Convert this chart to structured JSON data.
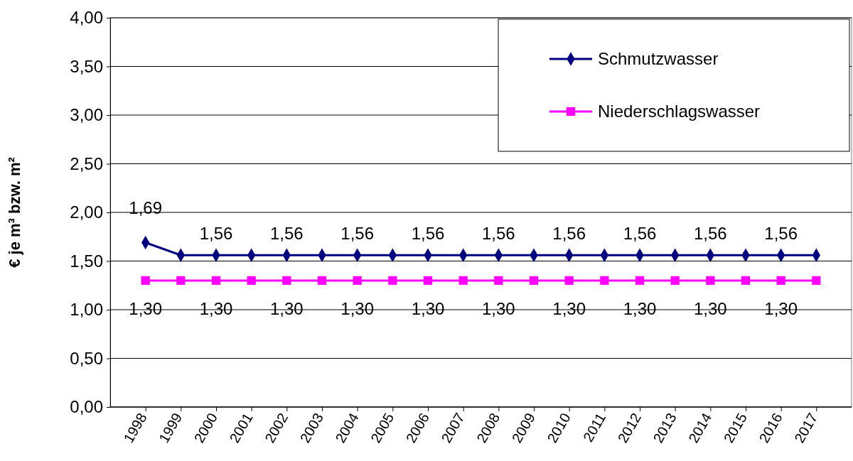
{
  "chart_data": {
    "type": "line",
    "ylabel": "€ je m³ bzw. m²",
    "categories": [
      "1998",
      "1999",
      "2000",
      "2001",
      "2002",
      "2003",
      "2004",
      "2005",
      "2006",
      "2007",
      "2008",
      "2009",
      "2010",
      "2011",
      "2012",
      "2013",
      "2014",
      "2015",
      "2016",
      "2017"
    ],
    "series": [
      {
        "name": "Schmutzwasser",
        "color": "#000080",
        "marker": "diamond",
        "values": [
          1.69,
          1.56,
          1.56,
          1.56,
          1.56,
          1.56,
          1.56,
          1.56,
          1.56,
          1.56,
          1.56,
          1.56,
          1.56,
          1.56,
          1.56,
          1.56,
          1.56,
          1.56,
          1.56,
          1.56
        ],
        "value_labels": [
          "1,69",
          null,
          "1,56",
          null,
          "1,56",
          null,
          "1,56",
          null,
          "1,56",
          null,
          "1,56",
          null,
          "1,56",
          null,
          "1,56",
          null,
          "1,56",
          null,
          "1,56",
          null
        ]
      },
      {
        "name": "Niederschlagswasser",
        "color": "#ff00ff",
        "marker": "square",
        "values": [
          1.3,
          1.3,
          1.3,
          1.3,
          1.3,
          1.3,
          1.3,
          1.3,
          1.3,
          1.3,
          1.3,
          1.3,
          1.3,
          1.3,
          1.3,
          1.3,
          1.3,
          1.3,
          1.3,
          1.3
        ],
        "value_labels": [
          "1,30",
          null,
          "1,30",
          null,
          "1,30",
          null,
          "1,30",
          null,
          "1,30",
          null,
          "1,30",
          null,
          "1,30",
          null,
          "1,30",
          null,
          "1,30",
          null,
          "1,30",
          null
        ]
      }
    ],
    "ylim": [
      0,
      4
    ],
    "yticks": [
      {
        "value": 0,
        "label": "0,00"
      },
      {
        "value": 0.5,
        "label": "0,50"
      },
      {
        "value": 1,
        "label": "1,00"
      },
      {
        "value": 1.5,
        "label": "1,50"
      },
      {
        "value": 2,
        "label": "2,00"
      },
      {
        "value": 2.5,
        "label": "2,50"
      },
      {
        "value": 3,
        "label": "3,00"
      },
      {
        "value": 3.5,
        "label": "3,50"
      },
      {
        "value": 4,
        "label": "4,00"
      }
    ],
    "grid": "y",
    "legend": "top right",
    "line_style": "solid"
  }
}
